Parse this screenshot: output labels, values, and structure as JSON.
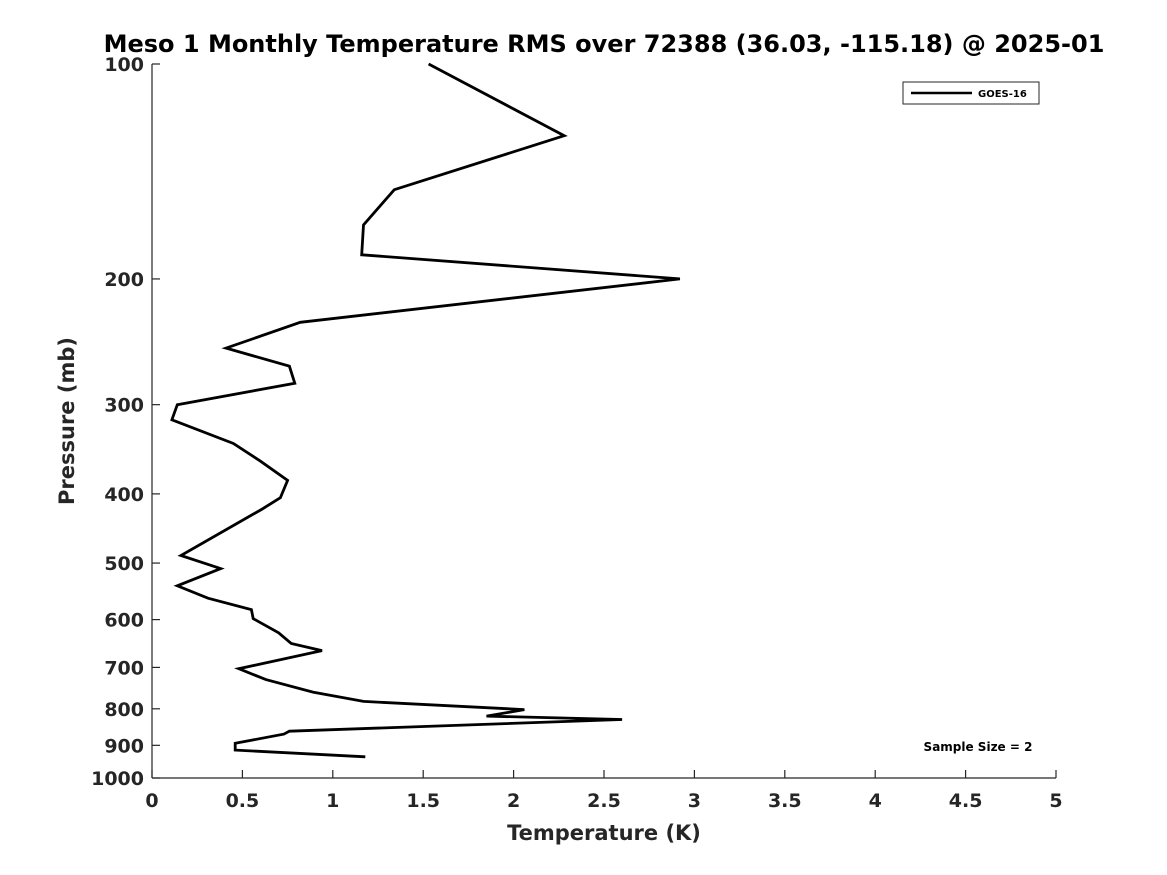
{
  "chart_data": {
    "type": "line",
    "title": "Meso 1 Monthly Temperature RMS over 72388 (36.03, -115.18) @ 2025-01",
    "xlabel": "Temperature (K)",
    "ylabel": "Pressure (mb)",
    "xlim": [
      0,
      5
    ],
    "ylim": [
      1000,
      100
    ],
    "y_scale": "log",
    "grid": false,
    "legend_position": "top-right",
    "x_ticks": [
      0,
      0.5,
      1,
      1.5,
      2,
      2.5,
      3,
      3.5,
      4,
      4.5,
      5
    ],
    "x_tick_labels": [
      "0",
      "0.5",
      "1",
      "1.5",
      "2",
      "2.5",
      "3",
      "3.5",
      "4",
      "4.5",
      "5"
    ],
    "y_ticks": [
      100,
      200,
      300,
      400,
      500,
      600,
      700,
      800,
      900,
      1000
    ],
    "y_tick_labels": [
      "100",
      "200",
      "300",
      "400",
      "500",
      "600",
      "700",
      "800",
      "900",
      "1000"
    ],
    "series": [
      {
        "name": "GOES-16",
        "color": "#000000",
        "points": [
          [
            1.53,
            100
          ],
          [
            2.28,
            126
          ],
          [
            1.34,
            150
          ],
          [
            1.17,
            168
          ],
          [
            1.16,
            185
          ],
          [
            2.92,
            200
          ],
          [
            0.82,
            230
          ],
          [
            0.41,
            250
          ],
          [
            0.76,
            265
          ],
          [
            0.79,
            280
          ],
          [
            0.14,
            300
          ],
          [
            0.11,
            315
          ],
          [
            0.45,
            340
          ],
          [
            0.6,
            360
          ],
          [
            0.75,
            383
          ],
          [
            0.71,
            405
          ],
          [
            0.61,
            420
          ],
          [
            0.16,
            488
          ],
          [
            0.38,
            509
          ],
          [
            0.14,
            538
          ],
          [
            0.31,
            560
          ],
          [
            0.55,
            581
          ],
          [
            0.56,
            598
          ],
          [
            0.7,
            626
          ],
          [
            0.77,
            648
          ],
          [
            0.94,
            663
          ],
          [
            0.48,
            703
          ],
          [
            0.63,
            728
          ],
          [
            0.89,
            758
          ],
          [
            1.17,
            781
          ],
          [
            2.06,
            802
          ],
          [
            1.85,
            819
          ],
          [
            2.6,
            828
          ],
          [
            0.76,
            860
          ],
          [
            0.73,
            868
          ],
          [
            0.46,
            894
          ],
          [
            0.46,
            914
          ],
          [
            1.18,
            934
          ]
        ]
      }
    ],
    "annotation": "Sample Size = 2"
  }
}
